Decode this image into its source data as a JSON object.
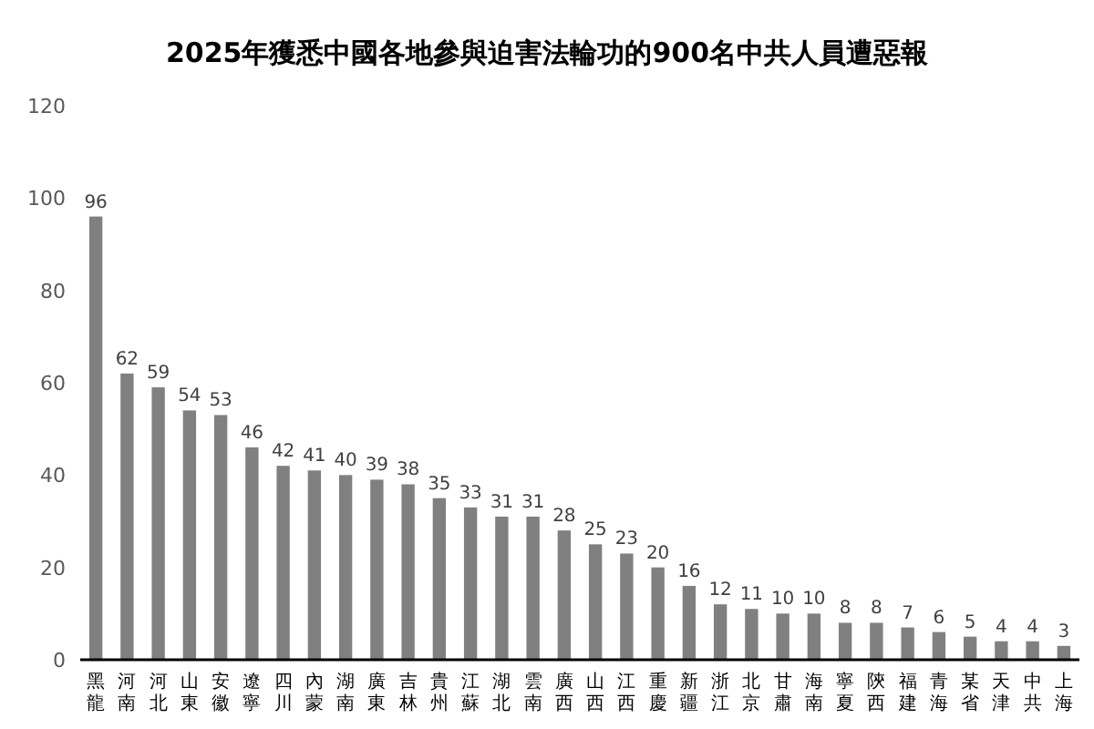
{
  "chart_data": {
    "type": "bar",
    "title": "2025年獲悉中國各地參與迫害法輪功的900名中共人員遭惡報",
    "categories": [
      "黑龍",
      "河南",
      "河北",
      "山東",
      "安徽",
      "遼寧",
      "四川",
      "內蒙",
      "湖南",
      "廣東",
      "吉林",
      "貴州",
      "江蘇",
      "湖北",
      "雲南",
      "廣西",
      "山西",
      "江西",
      "重慶",
      "新疆",
      "浙江",
      "北京",
      "甘肅",
      "海南",
      "寧夏",
      "陝西",
      "福建",
      "青海",
      "某省",
      "天津",
      "中共",
      "上海"
    ],
    "values": [
      96,
      62,
      59,
      54,
      53,
      46,
      42,
      41,
      40,
      39,
      38,
      35,
      33,
      31,
      31,
      28,
      25,
      23,
      20,
      16,
      12,
      11,
      10,
      10,
      8,
      8,
      7,
      6,
      5,
      4,
      4,
      3
    ],
    "color": "#808080",
    "ylim": [
      0,
      120
    ],
    "yticks": [
      0,
      20,
      40,
      60,
      80,
      100,
      120
    ],
    "data_labels": true,
    "grid": false
  }
}
